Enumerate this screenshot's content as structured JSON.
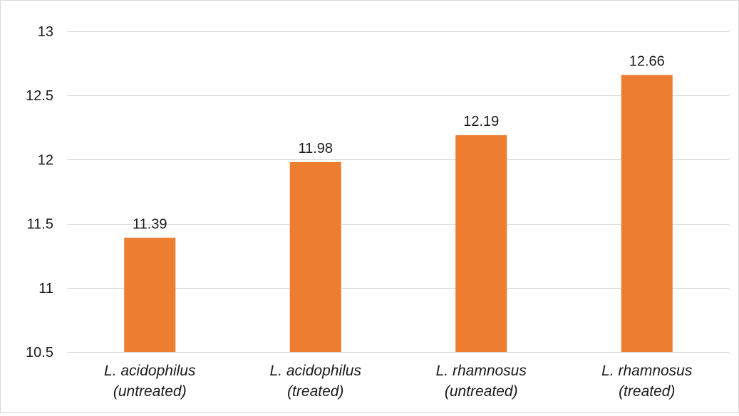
{
  "chart_data": {
    "type": "bar",
    "title": "",
    "xlabel": "",
    "ylabel": "",
    "categories": [
      [
        "L. acidophilus",
        "(untreated)"
      ],
      [
        "L. acidophilus",
        "(treated)"
      ],
      [
        "L. rhamnosus",
        "(untreated)"
      ],
      [
        "L. rhamnosus",
        "(treated)"
      ]
    ],
    "values": [
      11.39,
      11.98,
      12.19,
      12.66
    ],
    "data_labels": [
      "11.39",
      "11.98",
      "12.19",
      "12.66"
    ],
    "ylim": [
      10.5,
      13
    ],
    "yticks": [
      10.5,
      11,
      11.5,
      12,
      12.5,
      13
    ],
    "ytick_labels": [
      "10.5",
      "11",
      "11.5",
      "12",
      "12.5",
      "13"
    ],
    "grid": true,
    "legend": "none",
    "colors": {
      "bar": "#ed7d31",
      "grid": "#d9d9d9",
      "text": "#1a1a1a"
    }
  }
}
